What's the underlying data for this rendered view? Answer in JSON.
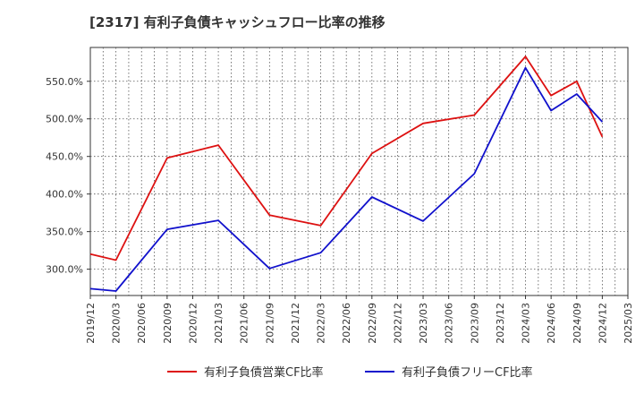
{
  "chart_data": {
    "type": "line",
    "title": "[2317]  有利子負債キャッシュフロー比率の推移",
    "x_categories": [
      "2019/12",
      "2020/03",
      "2020/06",
      "2020/09",
      "2020/12",
      "2021/03",
      "2021/06",
      "2021/09",
      "2021/12",
      "2022/03",
      "2022/06",
      "2022/09",
      "2022/12",
      "2023/03",
      "2023/06",
      "2023/09",
      "2023/12",
      "2024/03",
      "2024/06",
      "2024/09",
      "2024/12",
      "2025/03"
    ],
    "ylim": [
      265,
      595
    ],
    "y_ticks": [
      300,
      350,
      400,
      450,
      500,
      550
    ],
    "y_tick_labels": [
      "300.0%",
      "350.0%",
      "400.0%",
      "450.0%",
      "500.0%",
      "550.0%"
    ],
    "grid": true,
    "legend_position": "bottom-center",
    "series": [
      {
        "name": "有利子負債営業CF比率",
        "color": "#dd1111",
        "points": [
          {
            "x": "2019/12",
            "y": 320
          },
          {
            "x": "2020/03",
            "y": 312
          },
          {
            "x": "2020/09",
            "y": 448
          },
          {
            "x": "2021/03",
            "y": 465
          },
          {
            "x": "2021/09",
            "y": 372
          },
          {
            "x": "2022/03",
            "y": 358
          },
          {
            "x": "2022/09",
            "y": 454
          },
          {
            "x": "2023/03",
            "y": 494
          },
          {
            "x": "2023/09",
            "y": 505
          },
          {
            "x": "2024/03",
            "y": 583
          },
          {
            "x": "2024/06",
            "y": 531
          },
          {
            "x": "2024/09",
            "y": 550
          },
          {
            "x": "2024/12",
            "y": 476
          }
        ]
      },
      {
        "name": "有利子負債フリーCF比率",
        "color": "#1111cc",
        "points": [
          {
            "x": "2019/12",
            "y": 274
          },
          {
            "x": "2020/03",
            "y": 271
          },
          {
            "x": "2020/09",
            "y": 353
          },
          {
            "x": "2021/03",
            "y": 365
          },
          {
            "x": "2021/09",
            "y": 301
          },
          {
            "x": "2022/03",
            "y": 322
          },
          {
            "x": "2022/09",
            "y": 396
          },
          {
            "x": "2023/03",
            "y": 364
          },
          {
            "x": "2023/09",
            "y": 427
          },
          {
            "x": "2024/03",
            "y": 568
          },
          {
            "x": "2024/06",
            "y": 511
          },
          {
            "x": "2024/09",
            "y": 533
          },
          {
            "x": "2024/12",
            "y": 496
          }
        ]
      }
    ]
  }
}
